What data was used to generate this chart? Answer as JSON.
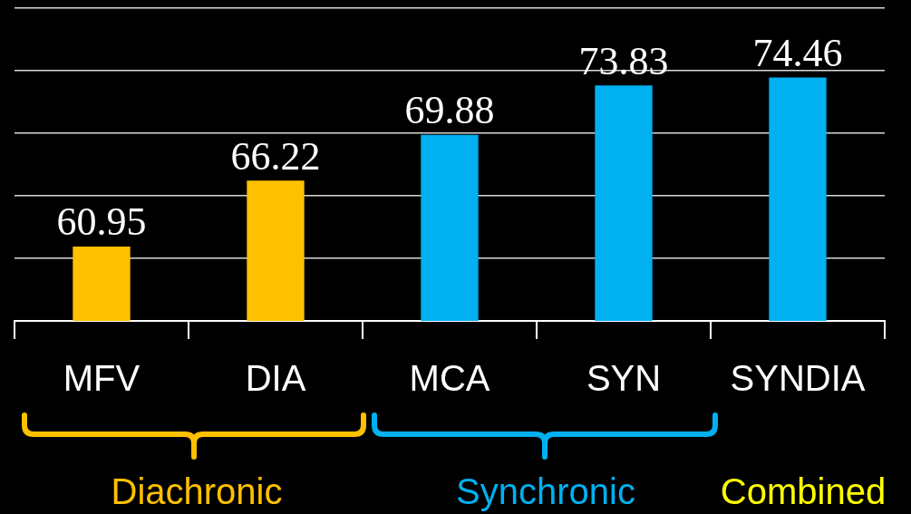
{
  "chart_data": {
    "type": "bar",
    "categories": [
      "MFV",
      "DIA",
      "MCA",
      "SYN",
      "SYNDIA"
    ],
    "values": [
      60.95,
      66.22,
      69.88,
      73.83,
      74.46
    ],
    "colors": [
      "#ffc000",
      "#ffc000",
      "#00b0f0",
      "#00b0f0",
      "#00b0f0"
    ],
    "ylim": [
      55,
      80
    ],
    "yticks": [
      {
        "value": 55,
        "label": null
      },
      {
        "value": 60,
        "label": null
      },
      {
        "value": 65,
        "label": null
      },
      {
        "value": 70,
        "label": null
      },
      {
        "value": 75,
        "label": null
      },
      {
        "value": 80,
        "label": null
      }
    ],
    "tick_labels": "x",
    "grid": "y",
    "data_labels": true,
    "legend": false,
    "annotations": [
      "Diachronic",
      "Synchronic",
      "Combined"
    ]
  }
}
